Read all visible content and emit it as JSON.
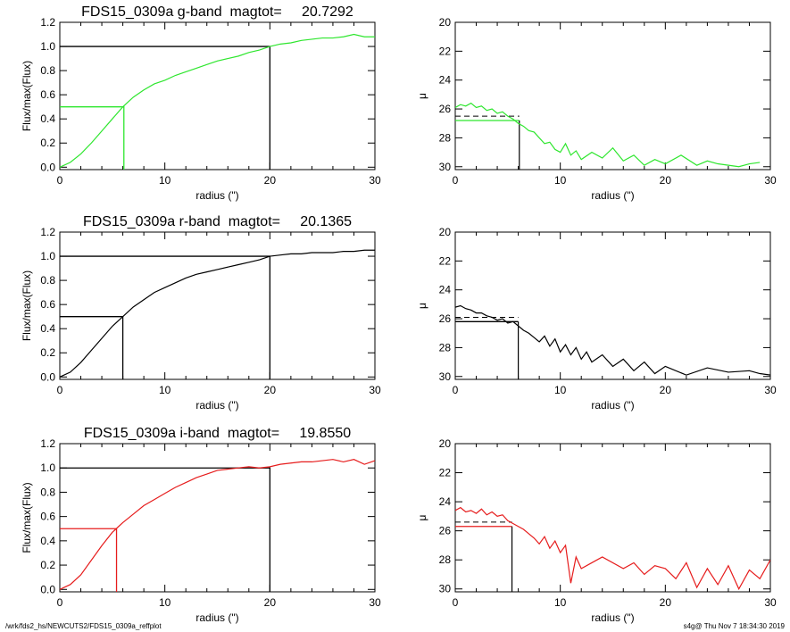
{
  "footer": {
    "left": "/wrk/fds2_hs/NEWCUTS2/FDS15_0309a_reffplot",
    "right": "s4g@  Thu Nov  7 18:34:30 2019"
  },
  "chart_data": [
    {
      "type": "line",
      "title": "FDS15_0309a g-band  magtot=     20.7292",
      "xlabel": "radius (\")",
      "ylabel": "Flux/max(Flux)",
      "xlim": [
        0,
        30
      ],
      "ylim": [
        -0.02,
        1.2
      ],
      "xticks": [
        0,
        10,
        20,
        30
      ],
      "yticks": [
        0.0,
        0.2,
        0.4,
        0.6,
        0.8,
        1.0,
        1.2
      ],
      "color": "#2ee62e",
      "r50": 6.1,
      "r_ref": 20.0,
      "x": [
        0,
        1,
        2,
        3,
        4,
        5,
        6,
        7,
        8,
        9,
        10,
        11,
        12,
        13,
        14,
        15,
        16,
        17,
        18,
        19,
        20,
        21,
        22,
        23,
        24,
        25,
        26,
        27,
        28,
        29,
        30
      ],
      "y": [
        0.0,
        0.04,
        0.11,
        0.2,
        0.3,
        0.4,
        0.5,
        0.58,
        0.64,
        0.69,
        0.72,
        0.76,
        0.79,
        0.82,
        0.85,
        0.88,
        0.9,
        0.92,
        0.95,
        0.97,
        1.0,
        1.02,
        1.03,
        1.05,
        1.06,
        1.07,
        1.07,
        1.08,
        1.1,
        1.08,
        1.08
      ]
    },
    {
      "type": "line",
      "xlabel": "radius (\")",
      "ylabel": "μ",
      "xlim": [
        0,
        30
      ],
      "ylim": [
        30.2,
        20
      ],
      "xticks": [
        0,
        10,
        20,
        30
      ],
      "yticks": [
        20,
        22,
        24,
        26,
        28,
        30
      ],
      "color": "#2ee62e",
      "mu_e": 26.8,
      "mu_mean": 26.5,
      "r_e": 6.1,
      "x": [
        0,
        0.5,
        1,
        1.5,
        2,
        2.5,
        3,
        3.5,
        4,
        4.5,
        5,
        5.5,
        6,
        6.5,
        7,
        7.5,
        8,
        8.5,
        9,
        9.5,
        10,
        10.5,
        11,
        11.5,
        12,
        13,
        14,
        15,
        16,
        17,
        18,
        19,
        20,
        21.5,
        23,
        24,
        25,
        26,
        27,
        28,
        29
      ],
      "y": [
        25.9,
        25.7,
        25.8,
        25.6,
        25.9,
        25.8,
        26.1,
        26.0,
        26.3,
        26.2,
        26.5,
        26.7,
        27.0,
        27.2,
        27.5,
        27.6,
        28.0,
        28.4,
        28.3,
        28.8,
        29.0,
        28.4,
        29.2,
        28.9,
        29.5,
        29.0,
        29.4,
        28.7,
        29.6,
        29.2,
        29.9,
        29.5,
        29.8,
        29.2,
        29.9,
        29.6,
        29.8,
        29.9,
        30.0,
        29.8,
        29.7
      ]
    },
    {
      "type": "line",
      "title": "FDS15_0309a r-band  magtot=     20.1365",
      "xlabel": "radius (\")",
      "ylabel": "Flux/max(Flux)",
      "xlim": [
        0,
        30
      ],
      "ylim": [
        -0.02,
        1.2
      ],
      "xticks": [
        0,
        10,
        20,
        30
      ],
      "yticks": [
        0.0,
        0.2,
        0.4,
        0.6,
        0.8,
        1.0,
        1.2
      ],
      "color": "#000000",
      "r50": 6.0,
      "r_ref": 20.0,
      "x": [
        0,
        1,
        2,
        3,
        4,
        5,
        6,
        7,
        8,
        9,
        10,
        11,
        12,
        13,
        14,
        15,
        16,
        17,
        18,
        19,
        20,
        21,
        22,
        23,
        24,
        25,
        26,
        27,
        28,
        29,
        30
      ],
      "y": [
        0.0,
        0.04,
        0.12,
        0.22,
        0.32,
        0.42,
        0.5,
        0.58,
        0.64,
        0.7,
        0.74,
        0.78,
        0.82,
        0.85,
        0.87,
        0.89,
        0.91,
        0.93,
        0.95,
        0.97,
        1.0,
        1.01,
        1.02,
        1.02,
        1.03,
        1.03,
        1.03,
        1.04,
        1.04,
        1.05,
        1.05
      ]
    },
    {
      "type": "line",
      "xlabel": "radius (\")",
      "ylabel": "μ",
      "xlim": [
        0,
        30
      ],
      "ylim": [
        30.2,
        20
      ],
      "xticks": [
        0,
        10,
        20,
        30
      ],
      "yticks": [
        20,
        22,
        24,
        26,
        28,
        30
      ],
      "color": "#000000",
      "mu_e": 26.2,
      "mu_mean": 25.9,
      "r_e": 6.0,
      "x": [
        0,
        0.5,
        1,
        1.5,
        2,
        2.5,
        3,
        3.5,
        4,
        4.5,
        5,
        5.5,
        6,
        6.5,
        7,
        7.5,
        8,
        8.5,
        9,
        9.5,
        10,
        10.5,
        11,
        11.5,
        12,
        12.5,
        13,
        14,
        15,
        16,
        17,
        18,
        19,
        20,
        22,
        24,
        26,
        28,
        29,
        30
      ],
      "y": [
        25.2,
        25.1,
        25.3,
        25.4,
        25.6,
        25.6,
        25.8,
        25.9,
        26.1,
        26.0,
        26.3,
        26.2,
        26.5,
        26.8,
        27.0,
        27.3,
        27.6,
        27.2,
        27.9,
        27.4,
        28.3,
        27.8,
        28.5,
        28.0,
        28.8,
        28.3,
        29.0,
        28.5,
        29.3,
        28.8,
        29.6,
        29.0,
        29.8,
        29.3,
        29.9,
        29.4,
        29.7,
        29.6,
        29.8,
        29.9
      ]
    },
    {
      "type": "line",
      "title": "FDS15_0309a i-band  magtot=     19.8550",
      "xlabel": "radius (\")",
      "ylabel": "Flux/max(Flux)",
      "xlim": [
        0,
        30
      ],
      "ylim": [
        -0.02,
        1.2
      ],
      "xticks": [
        0,
        10,
        20,
        30
      ],
      "yticks": [
        0.0,
        0.2,
        0.4,
        0.6,
        0.8,
        1.0,
        1.2
      ],
      "color": "#e61c1c",
      "r50": 5.4,
      "r_ref": 20.0,
      "x": [
        0,
        1,
        2,
        3,
        4,
        5,
        6,
        7,
        8,
        9,
        10,
        11,
        12,
        13,
        14,
        15,
        16,
        17,
        18,
        19,
        20,
        21,
        22,
        23,
        24,
        25,
        26,
        27,
        28,
        29,
        30
      ],
      "y": [
        0.0,
        0.04,
        0.12,
        0.24,
        0.36,
        0.47,
        0.55,
        0.62,
        0.69,
        0.74,
        0.79,
        0.84,
        0.88,
        0.92,
        0.95,
        0.98,
        0.99,
        1.0,
        1.01,
        1.0,
        1.01,
        1.03,
        1.04,
        1.05,
        1.05,
        1.06,
        1.07,
        1.05,
        1.07,
        1.03,
        1.06
      ]
    },
    {
      "type": "line",
      "xlabel": "radius (\")",
      "ylabel": "μ",
      "xlim": [
        0,
        30
      ],
      "ylim": [
        30.2,
        20
      ],
      "xticks": [
        0,
        10,
        20,
        30
      ],
      "yticks": [
        20,
        22,
        24,
        26,
        28,
        30
      ],
      "color": "#e61c1c",
      "mu_e": 25.7,
      "mu_mean": 25.4,
      "r_e": 5.4,
      "x": [
        0,
        0.5,
        1,
        1.5,
        2,
        2.5,
        3,
        3.5,
        4,
        4.5,
        5,
        5.5,
        6,
        6.5,
        7,
        7.5,
        8,
        8.5,
        9,
        9.5,
        10,
        10.5,
        11,
        11.5,
        12,
        13,
        14,
        16,
        17,
        18,
        19,
        20,
        21,
        22,
        23,
        24,
        25,
        26,
        27,
        28,
        29,
        30
      ],
      "y": [
        24.6,
        24.4,
        24.7,
        24.6,
        24.8,
        24.5,
        24.9,
        24.7,
        25.0,
        24.9,
        25.3,
        25.5,
        25.7,
        25.9,
        26.2,
        26.5,
        26.9,
        26.4,
        27.2,
        26.7,
        27.5,
        27.0,
        29.6,
        27.8,
        28.6,
        28.2,
        27.8,
        28.6,
        28.2,
        29.0,
        28.4,
        28.6,
        29.3,
        28.2,
        29.9,
        28.6,
        29.7,
        28.4,
        30.0,
        28.7,
        29.3,
        28.0
      ]
    }
  ]
}
